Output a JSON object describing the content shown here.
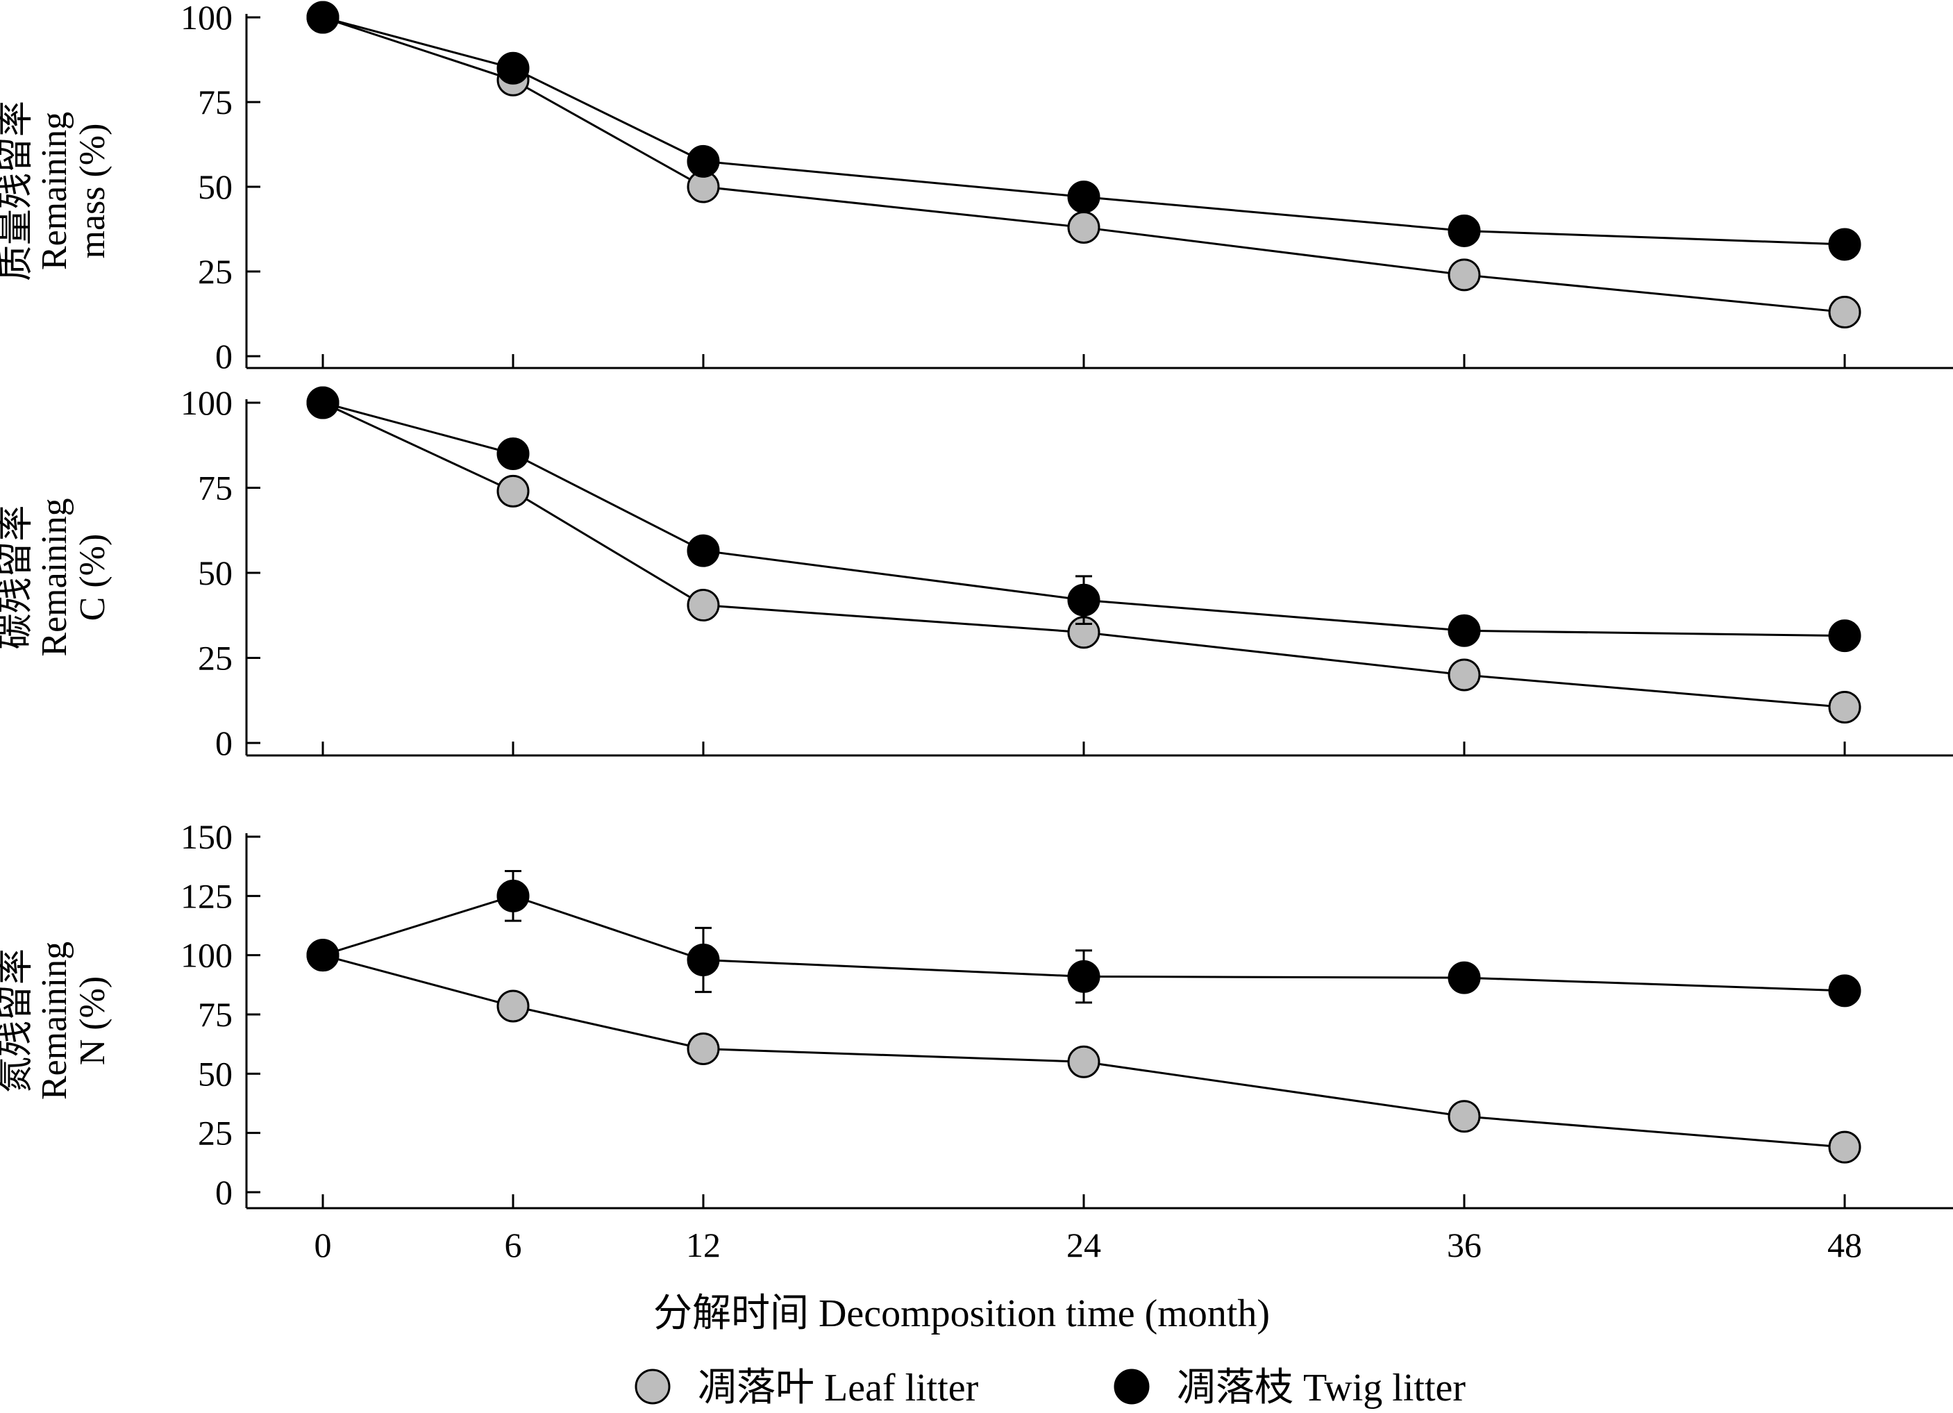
{
  "chart_data": [
    {
      "type": "line",
      "ylabel": [
        "质量残留率",
        "Remaining",
        "mass (%)"
      ],
      "ylim": [
        0,
        100
      ],
      "yticks": [
        0,
        25,
        50,
        75,
        100
      ],
      "x": [
        0,
        6,
        12,
        24,
        36,
        48
      ],
      "series": [
        {
          "name": "凋落叶 Leaf litter",
          "color": "#bdbdbd",
          "values": [
            100,
            81.5,
            50,
            38,
            24,
            13
          ]
        },
        {
          "name": "凋落枝 Twig litter",
          "color": "#000000",
          "values": [
            100,
            85,
            57.5,
            47,
            37,
            33
          ]
        }
      ]
    },
    {
      "type": "line",
      "ylabel": [
        "碳残留率",
        "Remaining",
        "C (%)"
      ],
      "ylim": [
        0,
        100
      ],
      "yticks": [
        0,
        25,
        50,
        75,
        100
      ],
      "x": [
        0,
        6,
        12,
        24,
        36,
        48
      ],
      "series": [
        {
          "name": "凋落叶 Leaf litter",
          "color": "#bdbdbd",
          "values": [
            100,
            74,
            40.5,
            32.5,
            20,
            10.5
          ]
        },
        {
          "name": "凋落枝 Twig litter",
          "color": "#000000",
          "values": [
            100,
            85,
            56.5,
            42,
            33,
            31.5
          ],
          "errors": [
            0,
            0,
            0,
            7,
            0,
            0
          ]
        }
      ]
    },
    {
      "type": "line",
      "ylabel": [
        "氮残留率",
        "Remaining",
        "N (%)"
      ],
      "ylim": [
        0,
        150
      ],
      "yticks": [
        0,
        25,
        50,
        75,
        100,
        125,
        150
      ],
      "x": [
        0,
        6,
        12,
        24,
        36,
        48
      ],
      "series": [
        {
          "name": "凋落叶 Leaf litter",
          "color": "#bdbdbd",
          "values": [
            100,
            78.5,
            60.5,
            55,
            32,
            19
          ]
        },
        {
          "name": "凋落枝 Twig litter",
          "color": "#000000",
          "values": [
            100,
            125,
            98,
            91,
            90.5,
            85
          ],
          "errors": [
            0,
            10.5,
            13.5,
            11,
            0,
            0
          ]
        }
      ]
    }
  ],
  "xaxis": {
    "label": "分解时间 Decomposition time (month)",
    "ticks": [
      0,
      6,
      12,
      24,
      36,
      48
    ],
    "xlim": [
      -2.5,
      51.5
    ]
  },
  "legend": {
    "placement": "bottom-center",
    "items": [
      {
        "label": "凋落叶 Leaf litter",
        "color": "#bdbdbd"
      },
      {
        "label": "凋落枝 Twig litter",
        "color": "#000000"
      }
    ]
  }
}
